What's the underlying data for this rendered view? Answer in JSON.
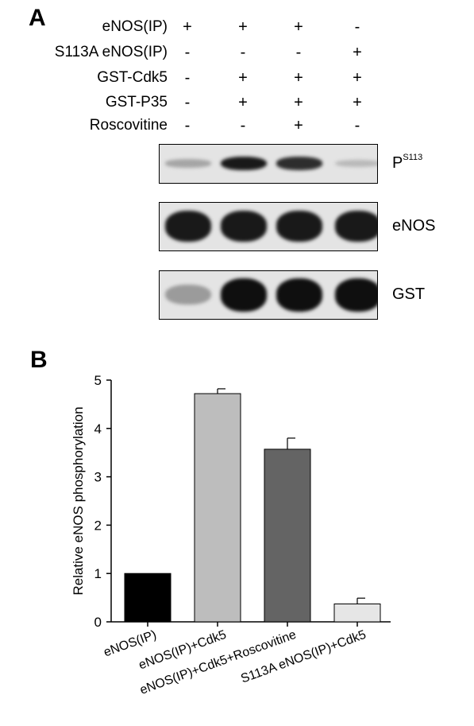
{
  "panel_a": {
    "letter": "A",
    "conditions": [
      {
        "label": "eNOS(IP)",
        "signs": [
          "+",
          "+",
          "+",
          "-"
        ]
      },
      {
        "label": "S113A eNOS(IP)",
        "signs": [
          "-",
          "-",
          "-",
          "+"
        ]
      },
      {
        "label": "GST-Cdk5",
        "signs": [
          "-",
          "+",
          "+",
          "+"
        ]
      },
      {
        "label": "GST-P35",
        "signs": [
          "-",
          "+",
          "+",
          "+"
        ]
      },
      {
        "label": "Roscovitine",
        "signs": [
          "-",
          "-",
          "+",
          "-"
        ]
      }
    ],
    "blots": [
      {
        "name": "pS113",
        "label_main": "P",
        "label_sup": "S113",
        "band_intensity": [
          0.25,
          0.95,
          0.85,
          0.15
        ]
      },
      {
        "name": "eNOS",
        "label_main": "eNOS",
        "label_sup": "",
        "band_intensity": [
          0.95,
          0.95,
          0.95,
          0.95
        ]
      },
      {
        "name": "GST",
        "label_main": "GST",
        "label_sup": "",
        "band_intensity": [
          0.3,
          1.0,
          1.0,
          1.0
        ]
      }
    ]
  },
  "panel_b": {
    "letter": "B"
  },
  "chart_data": {
    "type": "bar",
    "categories": [
      "eNOS(IP)",
      "eNOS(IP)+Cdk5",
      "eNOS(IP)+Cdk5+Roscovitine",
      "S113A eNOS(IP)+Cdk5"
    ],
    "values": [
      1.0,
      4.72,
      3.57,
      0.37
    ],
    "errors": [
      0.0,
      0.1,
      0.23,
      0.12
    ],
    "colors": [
      "#000000",
      "#bdbdbd",
      "#646464",
      "#e6e6e6"
    ],
    "title": "",
    "xlabel": "",
    "ylabel": "Relative eNOS phosphorylation",
    "ylim": [
      0,
      5
    ],
    "yticks": [
      0,
      1,
      2,
      3,
      4,
      5
    ],
    "grid": false,
    "legend": "none"
  }
}
